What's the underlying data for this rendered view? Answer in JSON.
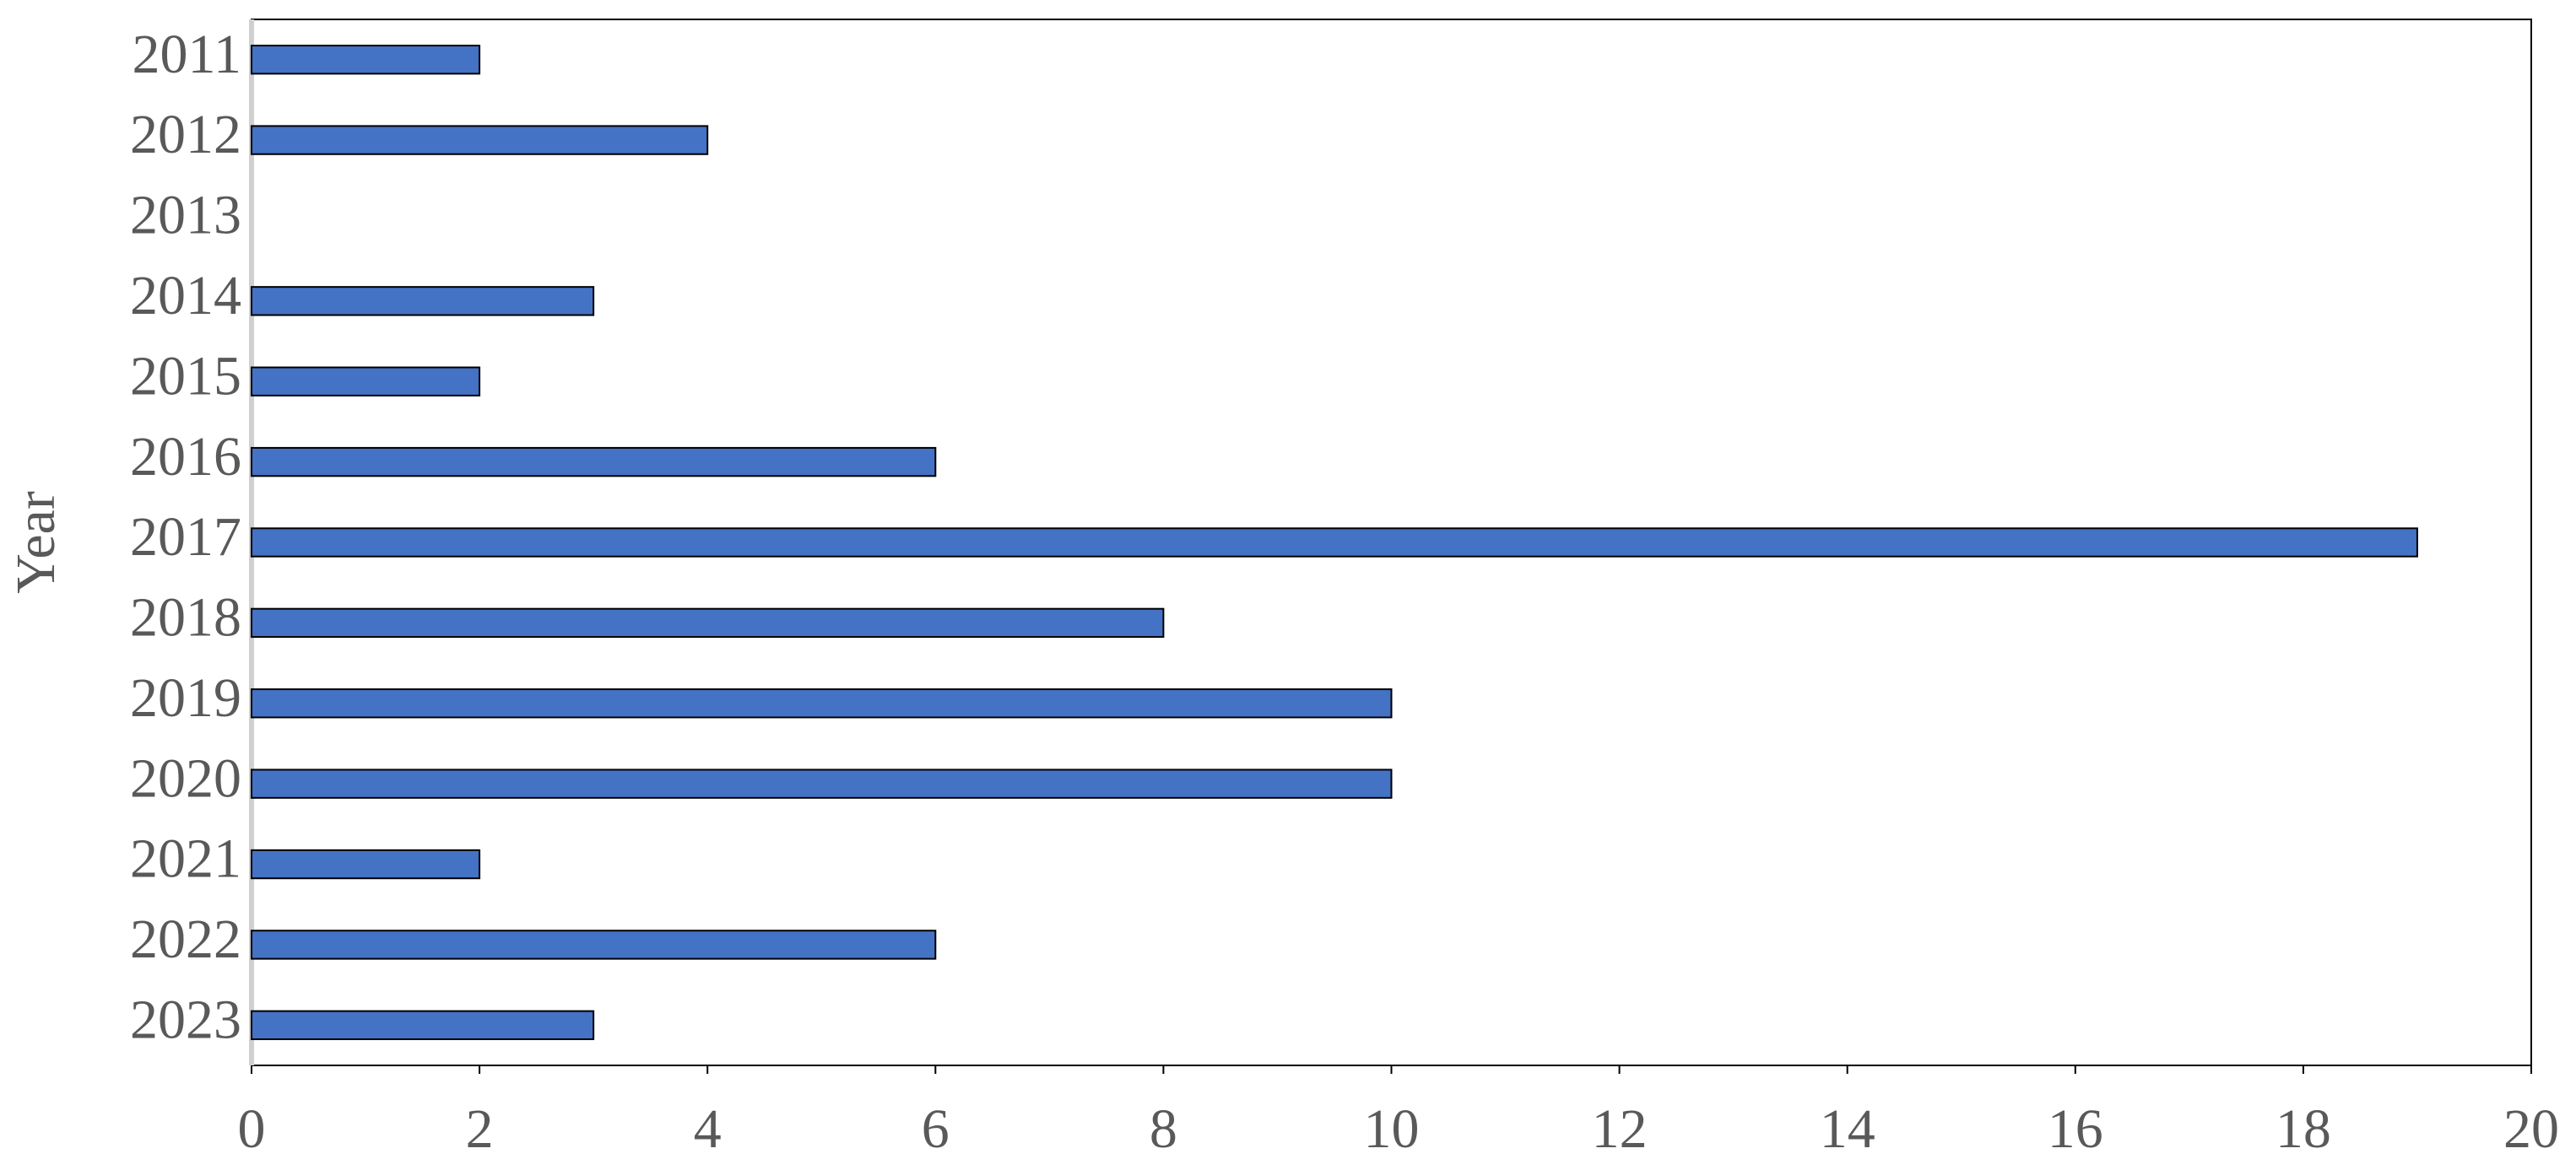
{
  "chart_data": {
    "type": "bar",
    "orientation": "horizontal",
    "y_label": "Year",
    "categories": [
      "2011",
      "2012",
      "2013",
      "2014",
      "2015",
      "2016",
      "2017",
      "2018",
      "2019",
      "2020",
      "2021",
      "2022",
      "2023"
    ],
    "values": [
      2,
      4,
      0,
      3,
      2,
      6,
      19,
      8,
      10,
      10,
      2,
      6,
      3
    ],
    "color": "#4472c4",
    "xlim": [
      0,
      20
    ],
    "xticks": [
      0,
      2,
      4,
      6,
      8,
      10,
      12,
      14,
      16,
      18,
      20
    ],
    "grid": false
  }
}
